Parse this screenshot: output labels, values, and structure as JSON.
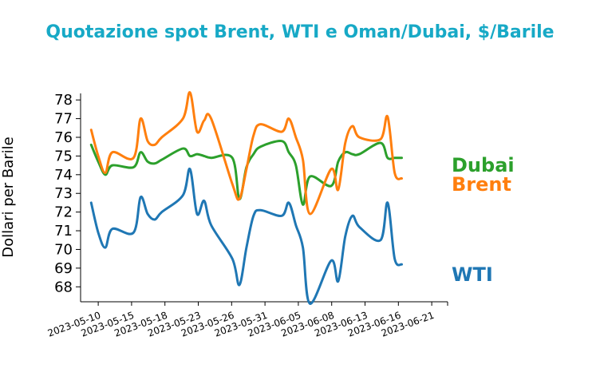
{
  "chart_data": {
    "type": "line",
    "title": "Quotazione spot Brent, WTI e Oman/Dubai, $/Barile",
    "ylabel": "Dollari per Barile",
    "xlabel": "",
    "ylim": [
      67.2,
      78.35
    ],
    "yticks": [
      68,
      69,
      70,
      71,
      72,
      73,
      74,
      75,
      76,
      77,
      78
    ],
    "xticks": [
      "2023-05-10",
      "2023-05-15",
      "2023-05-18",
      "2023-05-23",
      "2023-05-26",
      "2023-05-31",
      "2023-06-05",
      "2023-06-08",
      "2023-06-13",
      "2023-06-16",
      "2023-06-21"
    ],
    "x": [
      "2023-05-09",
      "2023-05-10",
      "2023-05-11",
      "2023-05-12",
      "2023-05-15",
      "2023-05-16",
      "2023-05-17",
      "2023-05-18",
      "2023-05-19",
      "2023-05-22",
      "2023-05-23",
      "2023-05-24",
      "2023-05-25",
      "2023-05-26",
      "2023-05-29",
      "2023-05-30",
      "2023-05-31",
      "2023-06-01",
      "2023-06-02",
      "2023-06-05",
      "2023-06-06",
      "2023-06-07",
      "2023-06-08",
      "2023-06-09",
      "2023-06-12",
      "2023-06-13",
      "2023-06-14",
      "2023-06-15",
      "2023-06-16",
      "2023-06-19",
      "2023-06-20",
      "2023-06-21",
      "2023-06-22"
    ],
    "grid": false,
    "legend": "none",
    "series": [
      {
        "name": "Dubai",
        "color": "#2ca02c",
        "values": [
          75.6,
          74.7,
          74.0,
          74.5,
          74.4,
          75.2,
          74.7,
          74.6,
          74.8,
          75.4,
          75.0,
          75.1,
          75.0,
          74.9,
          74.9,
          72.7,
          74.4,
          75.1,
          75.5,
          75.8,
          75.2,
          74.5,
          72.4,
          73.9,
          73.4,
          74.7,
          75.2,
          75.1,
          75.1,
          75.7,
          74.9,
          74.9,
          74.9
        ]
      },
      {
        "name": "Brent",
        "color": "#ff7f0e",
        "values": [
          76.4,
          75.0,
          74.1,
          75.2,
          74.9,
          77.0,
          75.8,
          75.6,
          76.0,
          77.0,
          78.4,
          76.3,
          76.9,
          77.0,
          73.5,
          72.7,
          74.3,
          76.1,
          76.7,
          76.3,
          77.0,
          76.0,
          74.8,
          71.9,
          74.3,
          73.2,
          75.7,
          76.6,
          76.0,
          75.9,
          77.1,
          74.1,
          73.8
        ]
      },
      {
        "name": "WTI",
        "color": "#1f77b4",
        "values": [
          72.5,
          70.9,
          70.1,
          71.1,
          70.9,
          72.8,
          71.9,
          71.6,
          72.0,
          72.9,
          74.3,
          71.9,
          72.6,
          71.3,
          69.5,
          68.1,
          70.1,
          71.8,
          72.1,
          71.8,
          72.5,
          71.3,
          70.1,
          67.1,
          69.4,
          68.3,
          70.7,
          71.8,
          71.2,
          70.5,
          72.5,
          69.5,
          69.2
        ]
      }
    ]
  }
}
